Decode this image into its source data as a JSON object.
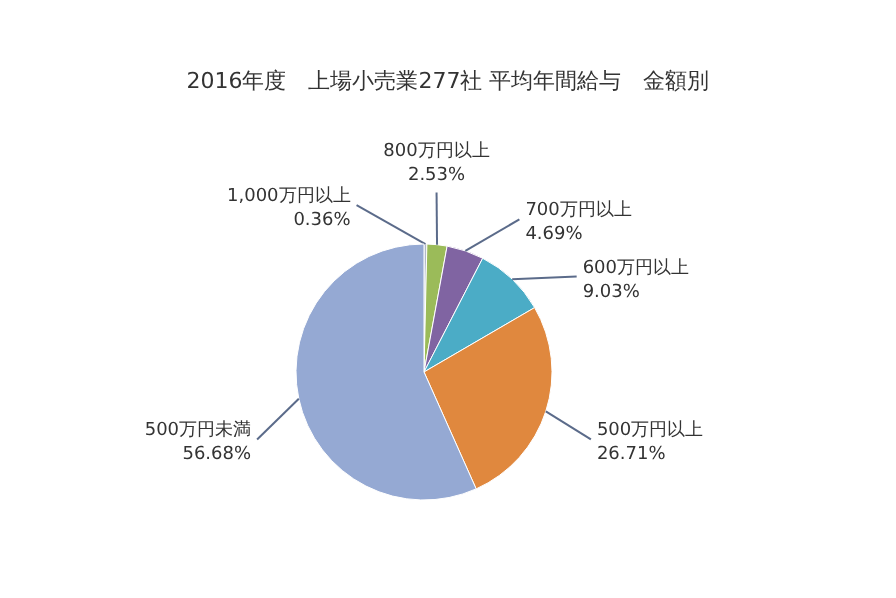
{
  "chart_data": {
    "type": "pie",
    "title": "2016年度　上場小売業277社 平均年間給与　金額別",
    "categories": [
      "1,000万円以上",
      "800万円以上",
      "700万円以上",
      "600万円以上",
      "500万円以上",
      "500万円未満"
    ],
    "values": [
      0.36,
      2.53,
      4.69,
      9.03,
      26.71,
      56.68
    ],
    "colors": [
      "#b0b8c8",
      "#9bbb59",
      "#8064a2",
      "#4bacc6",
      "#e0883e",
      "#95a9d3"
    ],
    "value_labels": [
      "0.36%",
      "2.53%",
      "4.69%",
      "9.03%",
      "26.71%",
      "56.68%"
    ]
  }
}
